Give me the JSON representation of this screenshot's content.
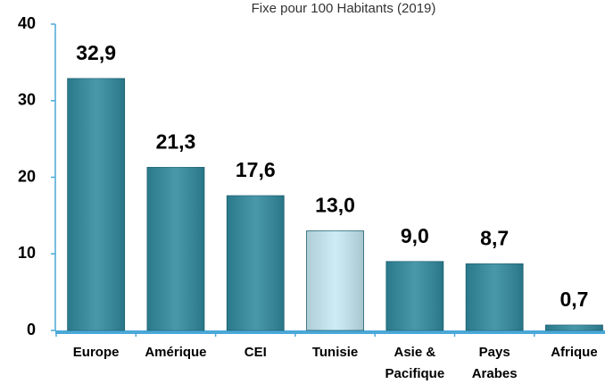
{
  "chart_data": {
    "type": "bar",
    "title": "Fixe pour 100 Habitants (2019)",
    "categories": [
      "Europe",
      "Amérique",
      "CEI",
      "Tunisie",
      "Asie & Pacifique",
      "Pays Arabes",
      "Afrique"
    ],
    "values": [
      32.9,
      21.3,
      17.6,
      13.0,
      9.0,
      8.7,
      0.7
    ],
    "value_labels": [
      "32,9",
      "21,3",
      "17,6",
      "13,0",
      "9,0",
      "8,7",
      "0,7"
    ],
    "colors": [
      "#2f8a9e",
      "#2f8a9e",
      "#2f8a9e",
      "#c6e9f3",
      "#2f8a9e",
      "#2f8a9e",
      "#2f8a9e"
    ],
    "ylim": [
      0,
      40
    ],
    "yticks": [
      0,
      10,
      20,
      30,
      40
    ],
    "grid": false
  }
}
